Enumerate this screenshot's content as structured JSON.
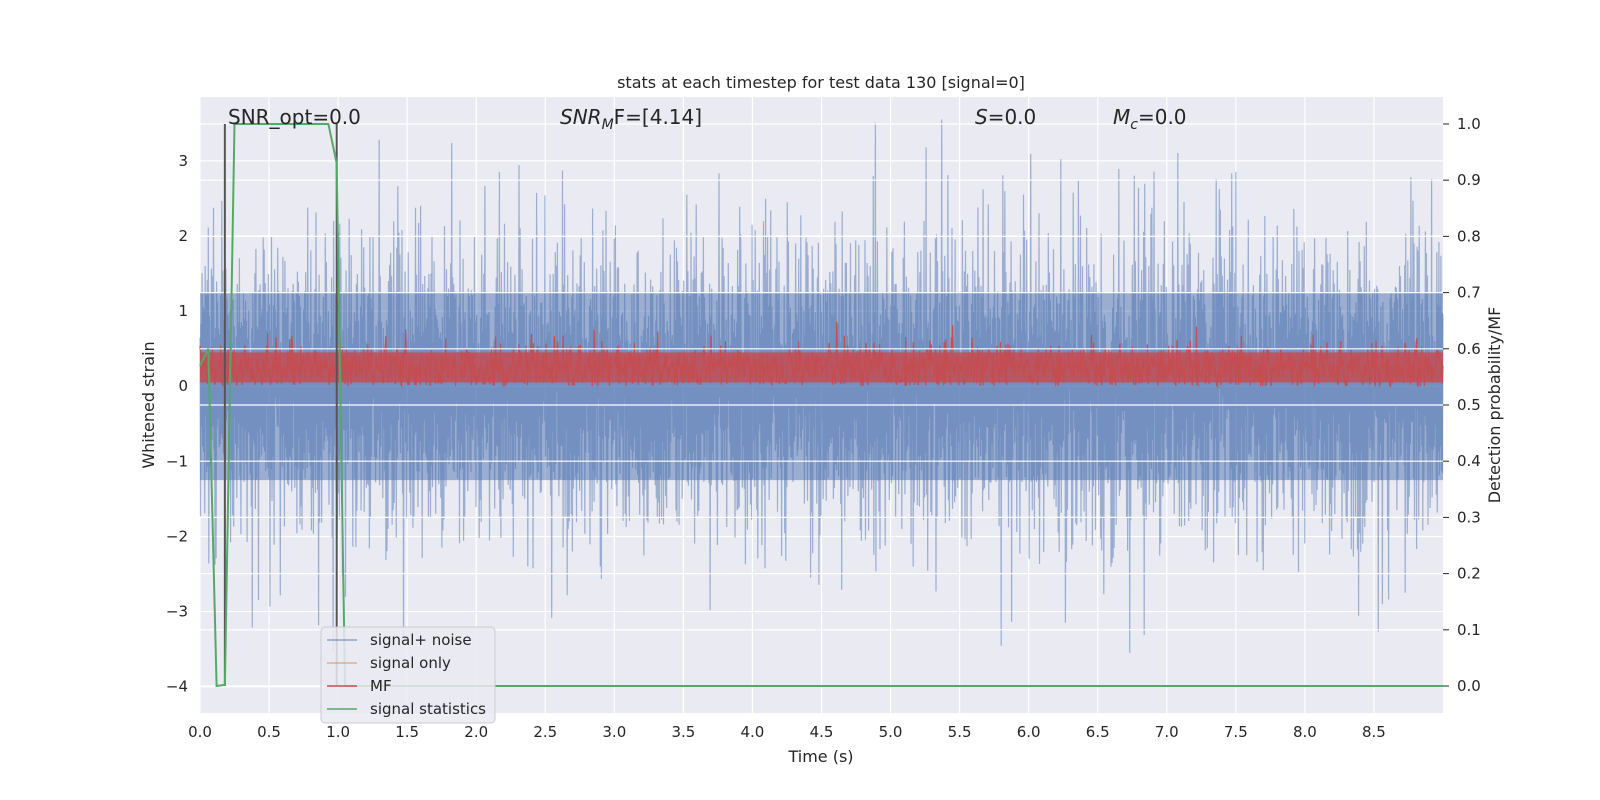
{
  "chart_data": {
    "type": "line",
    "title": "stats at each timestep for test data 130 [signal=0]",
    "xlabel": "Time (s)",
    "ylabel_left": "Whitened strain",
    "ylabel_right": "Detection probability/MF",
    "xlim": [
      0.0,
      9.0
    ],
    "ylim_left": [
      -4.35,
      3.85
    ],
    "ylim_right": [
      -0.048,
      1.048
    ],
    "x_ticks": [
      "0.0",
      "0.5",
      "1.0",
      "1.5",
      "2.0",
      "2.5",
      "3.0",
      "3.5",
      "4.0",
      "4.5",
      "5.0",
      "5.5",
      "6.0",
      "6.5",
      "7.0",
      "7.5",
      "8.0",
      "8.5"
    ],
    "x_tick_values": [
      0.0,
      0.5,
      1.0,
      1.5,
      2.0,
      2.5,
      3.0,
      3.5,
      4.0,
      4.5,
      5.0,
      5.5,
      6.0,
      6.5,
      7.0,
      7.5,
      8.0,
      8.5
    ],
    "y_ticks_left": [
      "−4",
      "−3",
      "−2",
      "−1",
      "0",
      "1",
      "2",
      "3"
    ],
    "y_tick_values_left": [
      -4,
      -3,
      -2,
      -1,
      0,
      1,
      2,
      3
    ],
    "y_ticks_right": [
      "0.0",
      "0.1",
      "0.2",
      "0.3",
      "0.4",
      "0.5",
      "0.6",
      "0.7",
      "0.8",
      "0.9",
      "1.0"
    ],
    "y_tick_values_right": [
      0.0,
      0.1,
      0.2,
      0.3,
      0.4,
      0.5,
      0.6,
      0.7,
      0.8,
      0.9,
      1.0
    ],
    "grid": true,
    "background": "#eaeaf2",
    "legend_position": "lower-left",
    "annotations": {
      "snr_opt": "SNR_opt=0.0",
      "snr_mf_prefix": "SNR",
      "snr_mf_sub": "M",
      "snr_mf_suffix": "F=[4.14]",
      "s_italic": "S",
      "s_value": "=0.0",
      "mc_italic": "M",
      "mc_sub": "c",
      "mc_value": "=0.0"
    },
    "series": [
      {
        "name": "signal+ noise",
        "axis": "left",
        "color": "#4c72b0",
        "alpha": 0.5,
        "kind": "noise",
        "x_range": [
          0.0,
          9.0
        ],
        "median_peak": 1.3,
        "max_abs": 3.55
      },
      {
        "name": "signal only",
        "axis": "left",
        "color": "#dd8452",
        "alpha": 0.5,
        "kind": "flat",
        "value": 0.0
      },
      {
        "name": "MF",
        "axis": "left",
        "color": "#c44e52",
        "kind": "noise-positive",
        "x_range": [
          0.0,
          9.0
        ],
        "baseline": 0.25,
        "max": 1.0
      },
      {
        "name": "signal statistics",
        "axis": "right",
        "color": "#55a868",
        "kind": "step",
        "x": [
          0.0,
          0.06,
          0.12,
          0.18,
          0.25,
          0.93,
          0.99,
          1.05,
          1.11,
          9.0
        ],
        "y": [
          0.57,
          0.6,
          0.0,
          0.002,
          1.0,
          1.0,
          0.93,
          0.0,
          0.0,
          0.0
        ]
      }
    ],
    "vertical_markers": {
      "color": "#555555",
      "x": [
        0.18,
        0.99
      ],
      "y_top_right": 1.0,
      "y_bottom_right": 0.0
    }
  }
}
